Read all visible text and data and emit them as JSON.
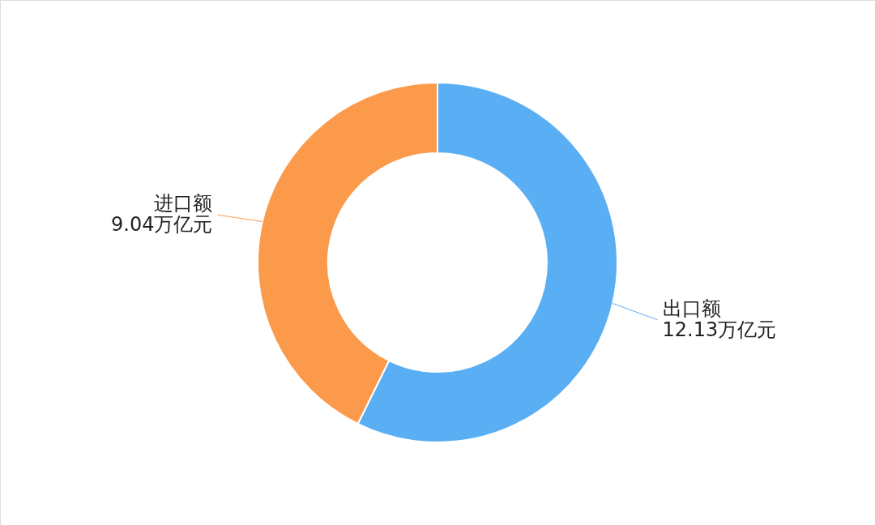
{
  "chart_data": {
    "type": "donut",
    "categories": [
      "出口额",
      "进口额"
    ],
    "values": [
      12.13,
      9.04
    ],
    "value_labels": [
      "12.13万亿元",
      "9.04万亿元"
    ],
    "colors": [
      "#5aaef3",
      "#fc9a4c"
    ]
  }
}
